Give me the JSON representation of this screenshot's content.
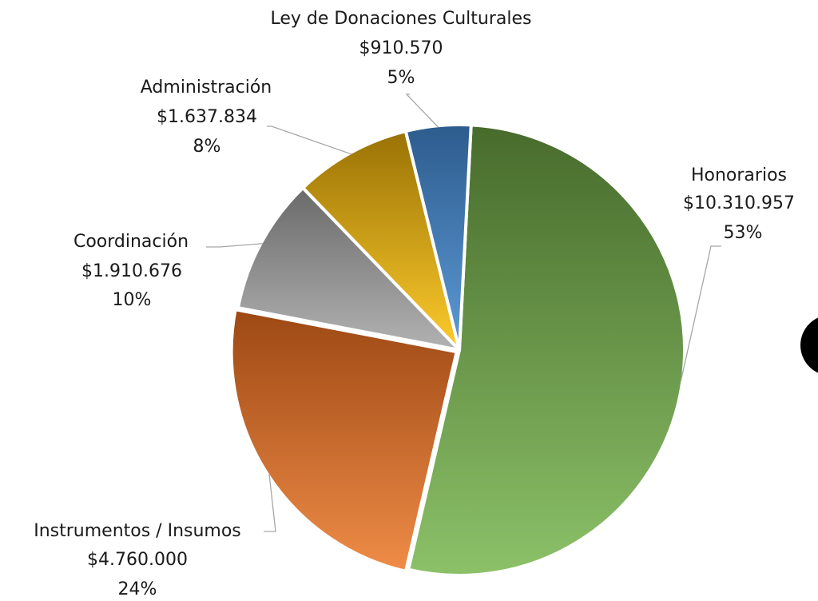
{
  "chart_data": {
    "type": "pie",
    "title": "",
    "slices": [
      {
        "name": "Honorarios",
        "amount": "$10.310.957",
        "percent": "53%",
        "value": 10310957,
        "color_dark": "#476b2c",
        "color_light": "#8cc168"
      },
      {
        "name": "Instrumentos / Insumos",
        "amount": "$4.760.000",
        "percent": "24%",
        "value": 4760000,
        "color_dark": "#9d4814",
        "color_light": "#ef8c47"
      },
      {
        "name": "Coordinación",
        "amount": "$1.910.676",
        "percent": "10%",
        "value": 1910676,
        "color_dark": "#6a6a6a",
        "color_light": "#b2b2b2"
      },
      {
        "name": "Administración",
        "amount": "$1.637.834",
        "percent": "8%",
        "value": 1637834,
        "color_dark": "#9a7205",
        "color_light": "#fdcb2c"
      },
      {
        "name": "Ley de Donaciones Culturales",
        "amount": "$910.570",
        "percent": "5%",
        "value": 910570,
        "color_dark": "#2d5c8e",
        "color_light": "#5d9ad6"
      }
    ]
  }
}
